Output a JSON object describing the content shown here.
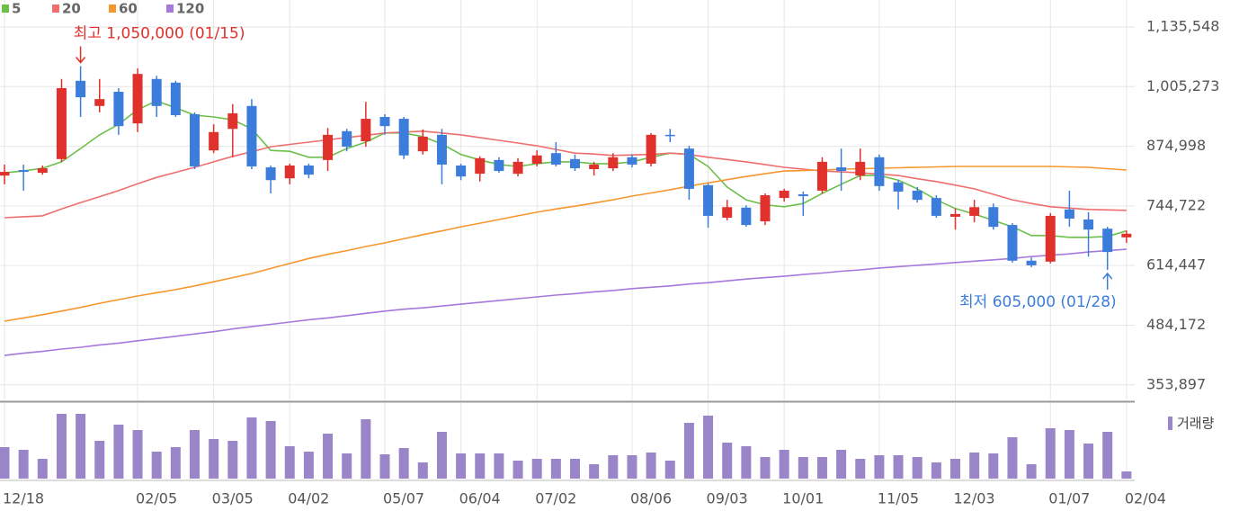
{
  "chart_data": {
    "type": "candlestick",
    "categories": [
      "12/18",
      null,
      null,
      null,
      null,
      null,
      null,
      "02/05",
      null,
      null,
      null,
      "03/05",
      null,
      null,
      null,
      "04/02",
      null,
      null,
      null,
      null,
      "05/07",
      null,
      null,
      null,
      "06/04",
      null,
      null,
      null,
      "07/02",
      null,
      null,
      null,
      null,
      "08/06",
      null,
      null,
      null,
      "09/03",
      null,
      null,
      null,
      "10/01",
      null,
      null,
      null,
      null,
      "11/05",
      null,
      null,
      null,
      "12/03",
      null,
      null,
      null,
      null,
      "01/07",
      null,
      null,
      null,
      "02/04"
    ],
    "open": [
      811000,
      823000,
      817000,
      847000,
      1018000,
      963000,
      994000,
      925000,
      1022000,
      1014000,
      945000,
      866000,
      913000,
      963000,
      829000,
      805000,
      833000,
      845000,
      908000,
      886000,
      939000,
      935000,
      864000,
      900000,
      833000,
      815000,
      845000,
      815000,
      837000,
      860000,
      847000,
      825000,
      827000,
      851000,
      837000,
      900000,
      870000,
      790000,
      719000,
      741000,
      711000,
      762000,
      770000,
      778000,
      829000,
      811000,
      851000,
      796000,
      778000,
      762000,
      721000,
      723000,
      742000,
      703000,
      625000,
      623000,
      737000,
      715000,
      695000,
      676000
    ],
    "high": [
      835000,
      835000,
      833000,
      1022000,
      1050000,
      1022000,
      1002000,
      1045000,
      1029000,
      1018000,
      949000,
      923000,
      967000,
      978000,
      833000,
      837000,
      837000,
      915000,
      913000,
      972000,
      945000,
      939000,
      912000,
      913000,
      837000,
      853000,
      851000,
      849000,
      866000,
      884000,
      857000,
      841000,
      860000,
      857000,
      904000,
      913000,
      876000,
      794000,
      758000,
      746000,
      772000,
      782000,
      776000,
      851000,
      870000,
      870000,
      857000,
      801000,
      786000,
      768000,
      739000,
      758000,
      750000,
      707000,
      632000,
      729000,
      778000,
      731000,
      699000,
      691000
    ],
    "low": [
      792000,
      778000,
      813000,
      841000,
      939000,
      949000,
      900000,
      906000,
      939000,
      939000,
      825000,
      860000,
      851000,
      825000,
      772000,
      792000,
      805000,
      821000,
      864000,
      874000,
      900000,
      847000,
      857000,
      792000,
      801000,
      798000,
      817000,
      809000,
      831000,
      831000,
      821000,
      811000,
      821000,
      829000,
      831000,
      884000,
      758000,
      697000,
      713000,
      699000,
      703000,
      754000,
      723000,
      772000,
      778000,
      801000,
      778000,
      737000,
      752000,
      719000,
      693000,
      709000,
      693000,
      621000,
      611000,
      619000,
      699000,
      634000,
      605000,
      664000
    ],
    "close": [
      819000,
      819000,
      827000,
      1002000,
      982000,
      978000,
      919000,
      1033000,
      963000,
      943000,
      831000,
      906000,
      947000,
      831000,
      801000,
      833000,
      813000,
      900000,
      874000,
      935000,
      919000,
      855000,
      896000,
      835000,
      809000,
      849000,
      821000,
      841000,
      855000,
      835000,
      827000,
      835000,
      851000,
      835000,
      900000,
      898000,
      782000,
      723000,
      742000,
      703000,
      768000,
      778000,
      766000,
      841000,
      821000,
      841000,
      788000,
      776000,
      758000,
      723000,
      727000,
      742000,
      699000,
      625000,
      615000,
      723000,
      717000,
      693000,
      644000,
      684000
    ],
    "up_color": "#e0312d",
    "down_color": "#3c7ddc",
    "series": [
      {
        "name": "5",
        "color": "#6cc04a",
        "values": [
          817000,
          821000,
          827000,
          841000,
          870000,
          900000,
          923000,
          955000,
          974000,
          959000,
          943000,
          939000,
          933000,
          913000,
          866000,
          864000,
          851000,
          851000,
          870000,
          884000,
          904000,
          904000,
          896000,
          880000,
          857000,
          845000,
          835000,
          831000,
          837000,
          841000,
          841000,
          837000,
          837000,
          841000,
          851000,
          860000,
          857000,
          831000,
          786000,
          758000,
          747000,
          743000,
          750000,
          772000,
          792000,
          811000,
          811000,
          801000,
          782000,
          758000,
          739000,
          727000,
          713000,
          699000,
          680000,
          680000,
          676000,
          676000,
          678000,
          690000
        ]
      },
      {
        "name": "20",
        "color": "#ee6e6e",
        "values": [
          719000,
          721000,
          723000,
          738000,
          752000,
          765000,
          778000,
          793000,
          807000,
          818000,
          829000,
          841000,
          853000,
          863000,
          874000,
          879000,
          884000,
          889000,
          894000,
          899000,
          904000,
          906000,
          908000,
          904000,
          900000,
          894000,
          888000,
          882000,
          876000,
          868000,
          860000,
          858000,
          855000,
          856000,
          857000,
          860000,
          857000,
          851000,
          846000,
          841000,
          835000,
          829000,
          825000,
          821000,
          819000,
          817000,
          814000,
          811000,
          804000,
          798000,
          790000,
          782000,
          770000,
          758000,
          750000,
          743000,
          740000,
          737000,
          736000,
          735000
        ]
      },
      {
        "name": "60",
        "color": "#f5962e",
        "values": [
          493000,
          500000,
          507000,
          515000,
          523000,
          532000,
          540000,
          548000,
          555000,
          562000,
          570000,
          579000,
          588000,
          597000,
          608000,
          619000,
          630000,
          639000,
          647000,
          656000,
          664000,
          673000,
          682000,
          690000,
          699000,
          707000,
          715000,
          723000,
          731000,
          738000,
          744000,
          751000,
          758000,
          766000,
          773000,
          780000,
          788000,
          795000,
          802000,
          809000,
          815000,
          821000,
          822000,
          823000,
          825000,
          826000,
          827000,
          828000,
          829000,
          830000,
          831000,
          831000,
          831000,
          831000,
          831000,
          831000,
          830000,
          829000,
          826000,
          823000
        ]
      },
      {
        "name": "120",
        "color": "#a678dc",
        "values": [
          418000,
          423000,
          427000,
          432000,
          436000,
          441000,
          445000,
          450000,
          455000,
          460000,
          465000,
          470000,
          476000,
          481000,
          486000,
          491000,
          496000,
          500000,
          505000,
          510000,
          515000,
          519000,
          522000,
          526000,
          530000,
          534000,
          538000,
          542000,
          546000,
          550000,
          553000,
          557000,
          560000,
          564000,
          567000,
          570000,
          574000,
          577000,
          581000,
          585000,
          588000,
          591000,
          595000,
          598000,
          602000,
          605000,
          609000,
          612000,
          615000,
          618000,
          621000,
          624000,
          627000,
          630000,
          634000,
          637000,
          640000,
          644000,
          647000,
          650000
        ]
      }
    ],
    "ylim": [
      320000,
      1194500
    ],
    "yticks": [
      {
        "value": 1135548,
        "label": "1,135,548"
      },
      {
        "value": 1005273,
        "label": "1,005,273"
      },
      {
        "value": 874998,
        "label": "874,998"
      },
      {
        "value": 744722,
        "label": "744,722"
      },
      {
        "value": 614447,
        "label": "614,447"
      },
      {
        "value": 484172,
        "label": "484,172"
      },
      {
        "value": 353897,
        "label": "353,897"
      }
    ],
    "grid": true,
    "annotations": {
      "high": "최고 1,050,000 (01/15)",
      "low": "최저 605,000 (01/28)"
    },
    "volume": {
      "name": "거래량",
      "color": "#9b85c9",
      "ylim": [
        0,
        80
      ],
      "values": [
        35,
        32,
        22,
        72,
        72,
        42,
        60,
        54,
        30,
        35,
        54,
        44,
        42,
        68,
        64,
        36,
        30,
        50,
        28,
        66,
        27,
        34,
        18,
        52,
        28,
        28,
        28,
        20,
        22,
        22,
        22,
        16,
        26,
        26,
        29,
        20,
        62,
        70,
        40,
        36,
        24,
        32,
        24,
        24,
        32,
        22,
        26,
        26,
        24,
        18,
        22,
        29,
        28,
        46,
        16,
        56,
        54,
        39,
        52,
        8
      ]
    }
  }
}
